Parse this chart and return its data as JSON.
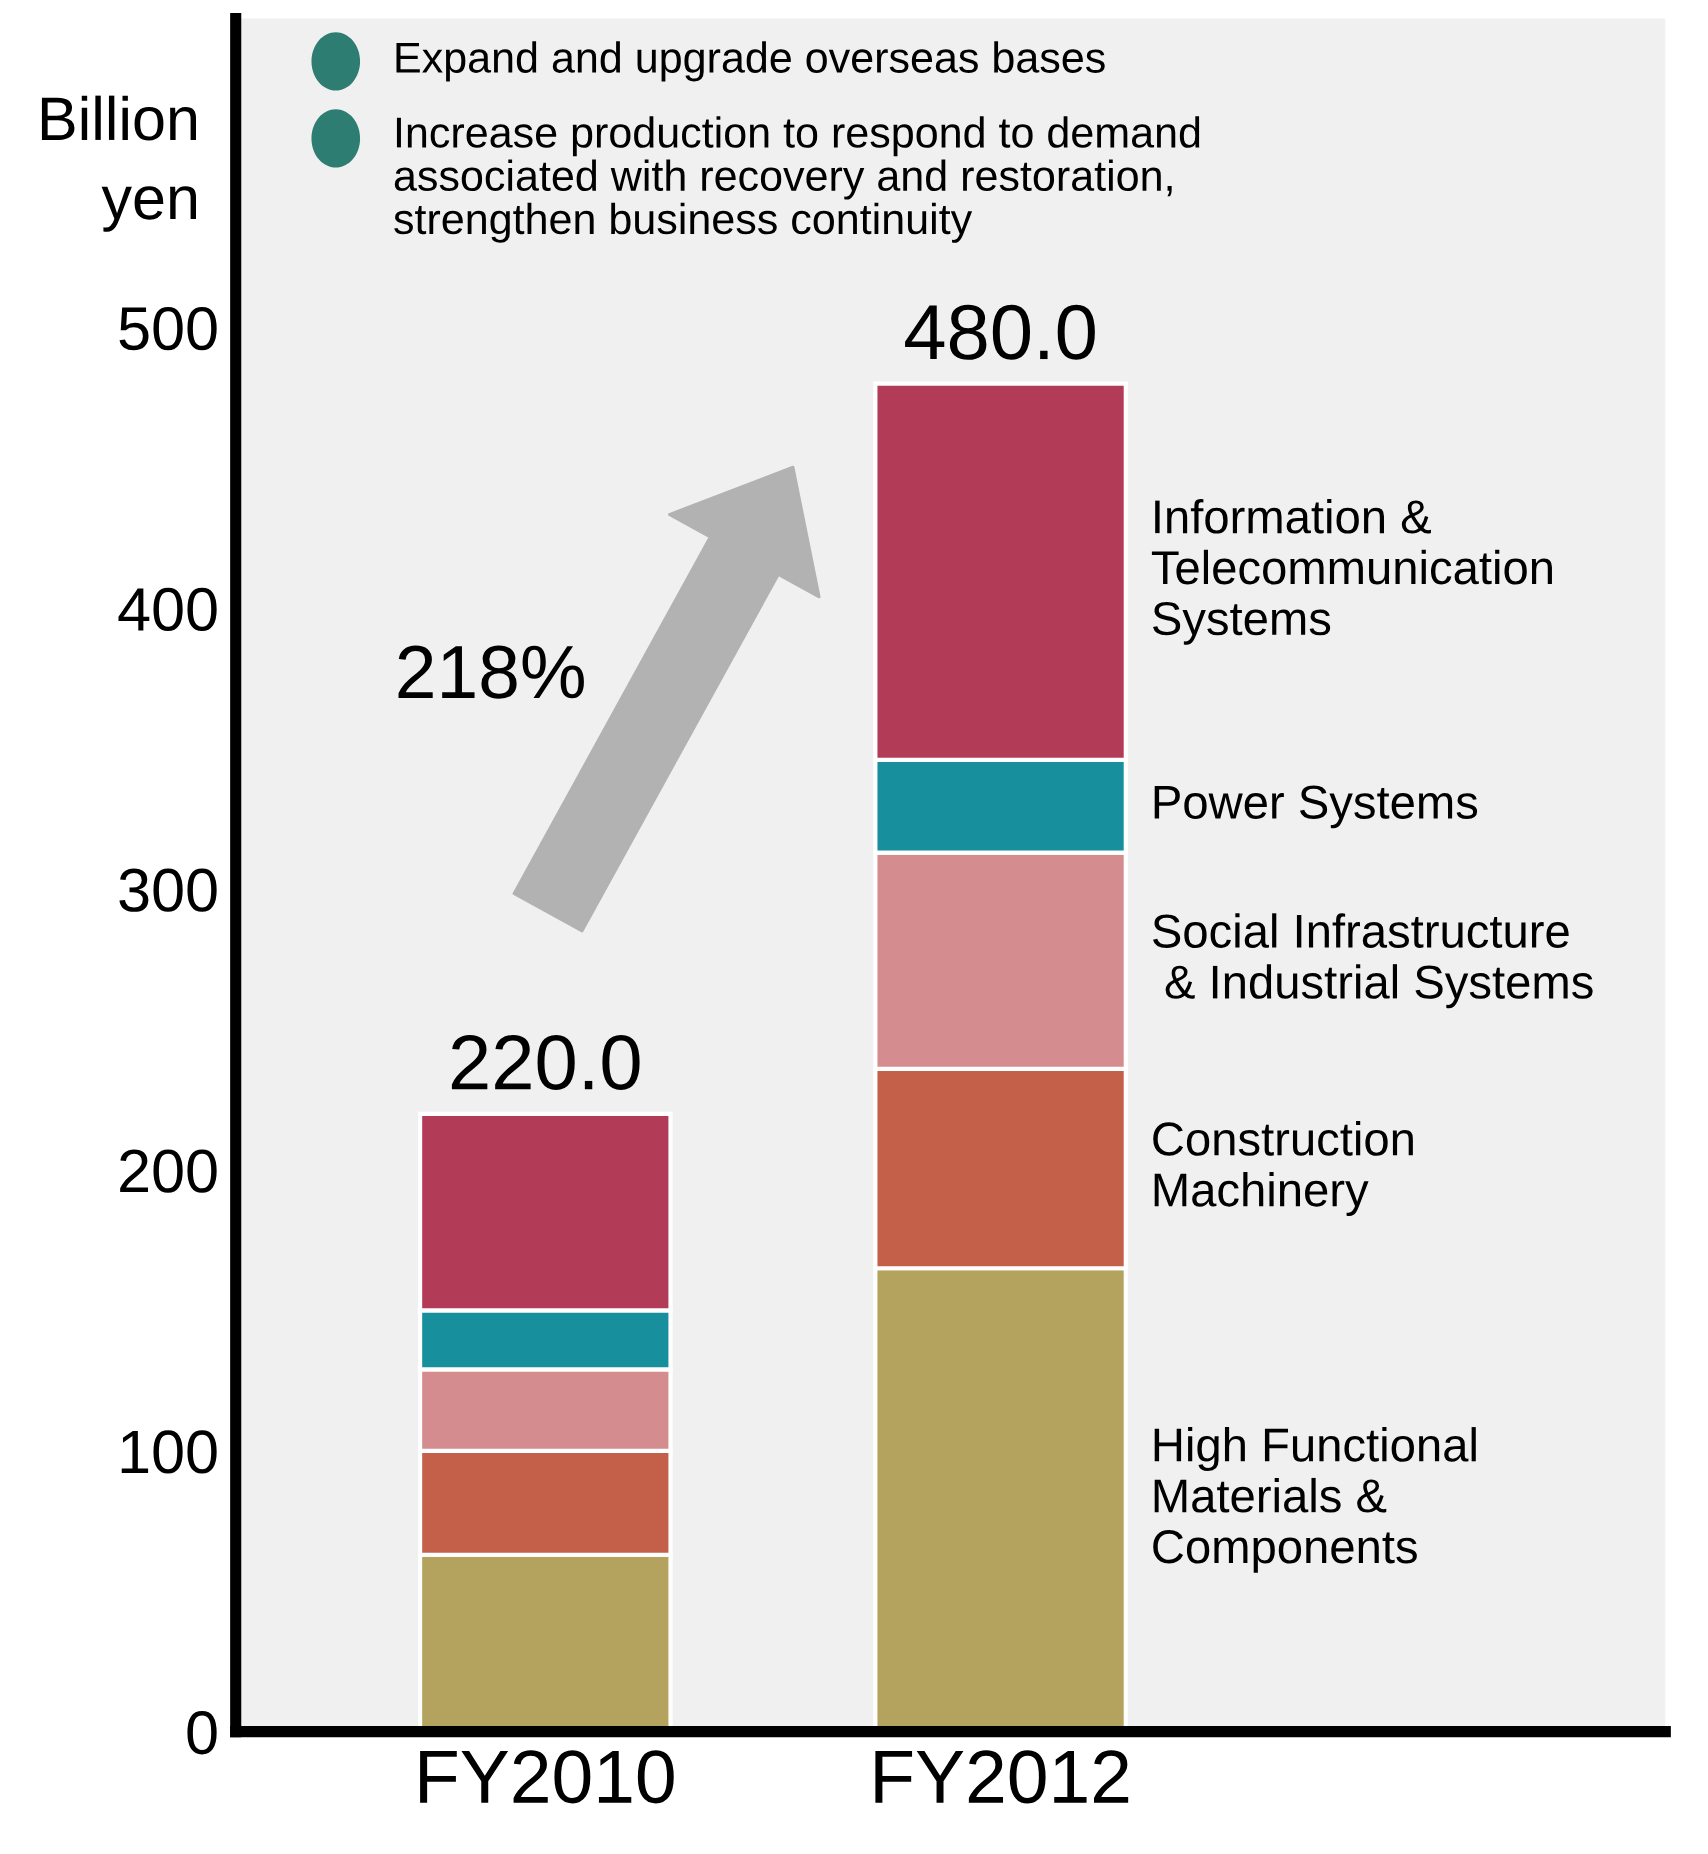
{
  "chart_data": {
    "type": "bar",
    "stacked": true,
    "ylabel": "Billion\nyen",
    "categories": [
      "FY2010",
      "FY2012"
    ],
    "series": [
      {
        "name": "High Functional\nMaterials &\nComponents",
        "color": "#b3a35e",
        "values": [
          63,
          165
        ]
      },
      {
        "name": "Construction\nMachinery",
        "color": "#c4604a",
        "values": [
          37,
          71
        ]
      },
      {
        "name": "Social Infrastructure\n & Industrial Systems",
        "color": "#d58c8f",
        "values": [
          29,
          77
        ]
      },
      {
        "name": "Power Systems",
        "color": "#178f9c",
        "values": [
          21,
          33
        ]
      },
      {
        "name": "Information &\nTelecommunication\nSystems",
        "color": "#b23b58",
        "values": [
          70,
          134
        ]
      }
    ],
    "totals": [
      "220.0",
      "480.0"
    ],
    "ylim": [
      0,
      610
    ],
    "yticks": [
      0,
      100,
      200,
      300,
      400,
      500
    ],
    "grid": false,
    "annotations": [
      "Expand and upgrade overseas bases",
      "Increase production to respond to demand\nassociated with recovery and restoration,\nstrengthen business continuity",
      "218%"
    ]
  }
}
